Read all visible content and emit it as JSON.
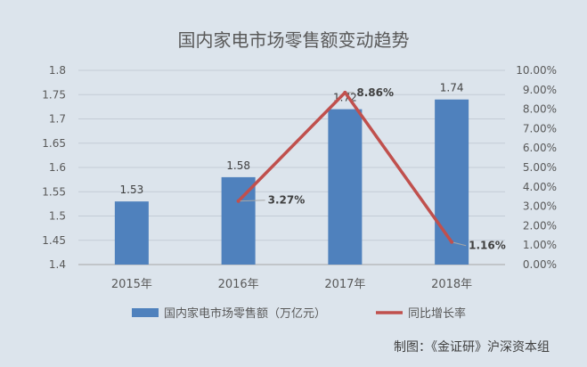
{
  "chart_data": {
    "type": "bar",
    "title": "国内家电市场零售额变动趋势",
    "categories": [
      "2015年",
      "2016年",
      "2017年",
      "2018年"
    ],
    "series": [
      {
        "name": "国内家电市场零售额（万亿元）",
        "type": "bar",
        "axis": "left",
        "values": [
          1.53,
          1.58,
          1.72,
          1.74
        ],
        "labels": [
          "1.53",
          "1.58",
          "1.72",
          "1.74"
        ],
        "color": "#4f81bd"
      },
      {
        "name": "同比增长率",
        "type": "line",
        "axis": "right",
        "values": [
          null,
          3.27,
          8.86,
          1.16
        ],
        "labels": [
          "",
          "3.27%",
          "8.86%",
          "1.16%"
        ],
        "color": "#c0504d"
      }
    ],
    "y_left": {
      "min": 1.4,
      "max": 1.8,
      "step": 0.05,
      "ticks": [
        "1.4",
        "1.45",
        "1.5",
        "1.55",
        "1.6",
        "1.65",
        "1.7",
        "1.75",
        "1.8"
      ]
    },
    "y_right": {
      "min": 0,
      "max": 10,
      "step": 1,
      "ticks": [
        "0.00%",
        "1.00%",
        "2.00%",
        "3.00%",
        "4.00%",
        "5.00%",
        "6.00%",
        "7.00%",
        "8.00%",
        "9.00%",
        "10.00%"
      ]
    },
    "grid": true,
    "legend_position": "bottom",
    "source_note": "制图：《金证研》沪深资本组"
  }
}
